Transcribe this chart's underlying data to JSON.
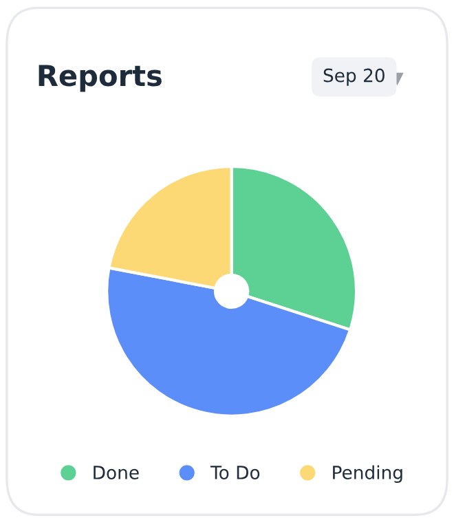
{
  "chart_data": {
    "type": "donut",
    "title": "Reports",
    "subtitle": "Sep 20",
    "categories": [
      "Done",
      "To Do",
      "Pending"
    ],
    "values": [
      30,
      48,
      22
    ],
    "colors": [
      "#5cd193",
      "#5b8ef9",
      "#fcd975"
    ],
    "legend": "bottom"
  }
}
